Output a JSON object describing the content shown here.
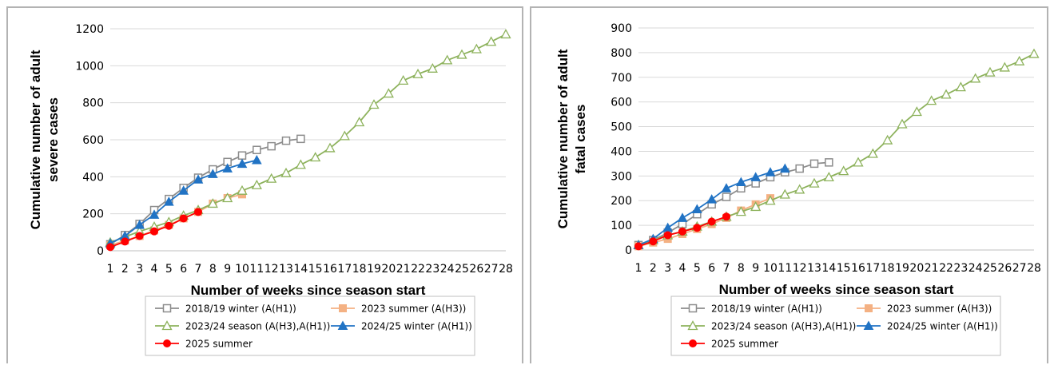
{
  "chart_data": [
    {
      "type": "line",
      "xlabel": "Number of weeks since season start",
      "ylabel_lines": [
        "Cumulative number of adult",
        "severe cases"
      ],
      "ylim": [
        0,
        1200
      ],
      "yticks": [
        0,
        200,
        400,
        600,
        800,
        1000,
        1200
      ],
      "xlim": [
        1,
        28
      ],
      "xticks": [
        1,
        2,
        3,
        4,
        5,
        6,
        7,
        8,
        9,
        10,
        11,
        12,
        13,
        14,
        15,
        16,
        17,
        18,
        19,
        20,
        21,
        22,
        23,
        24,
        25,
        26,
        27,
        28
      ],
      "grid": "horizontal",
      "legend_position": "bottom",
      "series": [
        {
          "name": "2018/19 winter (A(H1))",
          "color": "#8c8c8c",
          "marker": "square-open",
          "x": [
            1,
            2,
            3,
            4,
            5,
            6,
            7,
            8,
            9,
            10,
            11,
            12,
            13,
            14
          ],
          "values": [
            35,
            85,
            145,
            220,
            280,
            340,
            395,
            440,
            480,
            515,
            545,
            565,
            595,
            605
          ]
        },
        {
          "name": "2023 summer (A(H3))",
          "color": "#f4b183",
          "marker": "square",
          "x": [
            1,
            2,
            3,
            4,
            5,
            6,
            7,
            8,
            9,
            10
          ],
          "values": [
            30,
            55,
            80,
            110,
            140,
            175,
            210,
            255,
            285,
            305
          ]
        },
        {
          "name": "2023/24 season (A(H3),A(H1))",
          "color": "#8db25c",
          "marker": "triangle-open",
          "x": [
            1,
            2,
            3,
            4,
            5,
            6,
            7,
            8,
            9,
            10,
            11,
            12,
            13,
            14,
            15,
            16,
            17,
            18,
            19,
            20,
            21,
            22,
            23,
            24,
            25,
            26,
            27,
            28
          ],
          "values": [
            45,
            75,
            105,
            130,
            155,
            190,
            220,
            255,
            285,
            325,
            355,
            390,
            420,
            465,
            505,
            555,
            620,
            695,
            790,
            850,
            920,
            955,
            985,
            1030,
            1060,
            1090,
            1130,
            1170
          ]
        },
        {
          "name": "2024/25 winter (A(H1))",
          "color": "#2173c4",
          "marker": "triangle",
          "x": [
            1,
            2,
            3,
            4,
            5,
            6,
            7,
            8,
            9,
            10,
            11
          ],
          "values": [
            40,
            80,
            140,
            195,
            265,
            325,
            385,
            415,
            445,
            470,
            490
          ]
        },
        {
          "name": "2025 summer",
          "color": "#ff0000",
          "marker": "circle",
          "x": [
            1,
            2,
            3,
            4,
            5,
            6,
            7
          ],
          "values": [
            20,
            50,
            80,
            105,
            135,
            175,
            210
          ]
        }
      ]
    },
    {
      "type": "line",
      "xlabel": "Number of weeks since season start",
      "ylabel_lines": [
        "Cumulative number of adult",
        "fatal cases"
      ],
      "ylim": [
        0,
        900
      ],
      "yticks": [
        0,
        100,
        200,
        300,
        400,
        500,
        600,
        700,
        800,
        900
      ],
      "xlim": [
        1,
        28
      ],
      "xticks": [
        1,
        2,
        3,
        4,
        5,
        6,
        7,
        8,
        9,
        10,
        11,
        12,
        13,
        14,
        15,
        16,
        17,
        18,
        19,
        20,
        21,
        22,
        23,
        24,
        25,
        26,
        27,
        28
      ],
      "grid": "horizontal",
      "legend_position": "bottom",
      "series": [
        {
          "name": "2018/19 winter (A(H1))",
          "color": "#8c8c8c",
          "marker": "square-open",
          "x": [
            1,
            2,
            3,
            4,
            5,
            6,
            7,
            8,
            9,
            10,
            11,
            12,
            13,
            14
          ],
          "values": [
            20,
            40,
            70,
            105,
            145,
            185,
            215,
            250,
            270,
            295,
            315,
            330,
            350,
            355
          ]
        },
        {
          "name": "2023 summer (A(H3))",
          "color": "#f4b183",
          "marker": "square",
          "x": [
            1,
            2,
            3,
            4,
            5,
            6,
            7,
            8,
            9,
            10
          ],
          "values": [
            15,
            30,
            45,
            65,
            85,
            105,
            130,
            160,
            185,
            210
          ]
        },
        {
          "name": "2023/24 season (A(H3),A(H1))",
          "color": "#8db25c",
          "marker": "triangle-open",
          "x": [
            1,
            2,
            3,
            4,
            5,
            6,
            7,
            8,
            9,
            10,
            11,
            12,
            13,
            14,
            15,
            16,
            17,
            18,
            19,
            20,
            21,
            22,
            23,
            24,
            25,
            26,
            27,
            28
          ],
          "values": [
            20,
            40,
            60,
            75,
            95,
            115,
            135,
            155,
            175,
            200,
            225,
            245,
            270,
            295,
            320,
            355,
            390,
            445,
            510,
            560,
            605,
            630,
            660,
            695,
            720,
            740,
            765,
            795
          ]
        },
        {
          "name": "2024/25 winter (A(H1))",
          "color": "#2173c4",
          "marker": "triangle",
          "x": [
            1,
            2,
            3,
            4,
            5,
            6,
            7,
            8,
            9,
            10,
            11
          ],
          "values": [
            20,
            45,
            90,
            130,
            165,
            205,
            250,
            275,
            295,
            315,
            330
          ]
        },
        {
          "name": "2025 summer",
          "color": "#ff0000",
          "marker": "circle",
          "x": [
            1,
            2,
            3,
            4,
            5,
            6,
            7
          ],
          "values": [
            15,
            35,
            60,
            75,
            90,
            115,
            135
          ]
        }
      ]
    }
  ]
}
